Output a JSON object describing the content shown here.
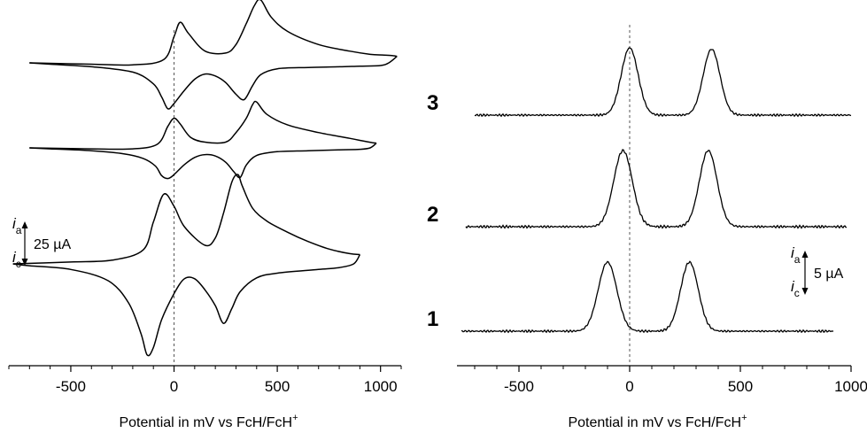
{
  "chart_data": [
    {
      "type": "line",
      "panel": "cyclic-voltammogram",
      "title": "",
      "xlabel": "Potential in mV vs FcH/FcH",
      "xlabel_superscript": "+",
      "ylabel": "",
      "xlim": [
        -800,
        1100
      ],
      "xticks": [
        -500,
        0,
        500,
        1000
      ],
      "xtick_labels": [
        "-500",
        "0",
        "500",
        "1000"
      ],
      "reference_line_x": 0,
      "scale_bar": {
        "top": "i",
        "top_sub": "a",
        "bottom": "i",
        "bottom_sub": "c",
        "label": "25 µA"
      },
      "series": [
        {
          "name": "3",
          "forward": {
            "x": [
              -700,
              -400,
              -200,
              -50,
              0,
              30,
              70,
              150,
              250,
              300,
              350,
              390,
              420,
              470,
              550,
              700,
              850,
              950,
              1010,
              1060,
              1080
            ],
            "y": [
              0.0,
              -0.02,
              -0.03,
              0.05,
              0.4,
              0.62,
              0.45,
              0.18,
              0.15,
              0.28,
              0.6,
              0.88,
              0.96,
              0.7,
              0.48,
              0.28,
              0.18,
              0.13,
              0.12,
              0.11,
              0.1
            ]
          },
          "reverse": {
            "x": [
              1080,
              1040,
              1000,
              900,
              800,
              650,
              500,
              420,
              380,
              340,
              300,
              250,
              200,
              150,
              100,
              50,
              0,
              -30,
              -60,
              -100,
              -200,
              -400,
              -600,
              -700
            ],
            "y": [
              0.1,
              0.0,
              -0.04,
              -0.05,
              -0.06,
              -0.07,
              -0.09,
              -0.18,
              -0.35,
              -0.56,
              -0.48,
              -0.3,
              -0.2,
              -0.17,
              -0.25,
              -0.42,
              -0.62,
              -0.7,
              -0.52,
              -0.32,
              -0.14,
              -0.06,
              -0.02,
              0.0
            ]
          }
        },
        {
          "name": "2",
          "forward": {
            "x": [
              -700,
              -400,
              -200,
              -80,
              -30,
              0,
              30,
              80,
              150,
              250,
              300,
              350,
              380,
              400,
              450,
              550,
              700,
              850,
              920,
              960,
              980
            ],
            "y": [
              0.0,
              -0.02,
              -0.02,
              0.08,
              0.45,
              0.62,
              0.5,
              0.22,
              0.12,
              0.12,
              0.32,
              0.62,
              0.9,
              0.96,
              0.7,
              0.48,
              0.32,
              0.2,
              0.14,
              0.11,
              0.1
            ]
          },
          "reverse": {
            "x": [
              980,
              950,
              900,
              800,
              650,
              500,
              400,
              350,
              320,
              290,
              250,
              200,
              150,
              100,
              50,
              0,
              -30,
              -60,
              -90,
              -150,
              -250,
              -400,
              -600,
              -700
            ],
            "y": [
              0.1,
              0.0,
              -0.03,
              -0.04,
              -0.06,
              -0.08,
              -0.16,
              -0.36,
              -0.62,
              -0.5,
              -0.3,
              -0.17,
              -0.14,
              -0.2,
              -0.35,
              -0.56,
              -0.64,
              -0.58,
              -0.38,
              -0.22,
              -0.12,
              -0.06,
              -0.02,
              0.0
            ]
          }
        },
        {
          "name": "1",
          "forward": {
            "x": [
              -780,
              -500,
              -300,
              -150,
              -100,
              -50,
              0,
              50,
              150,
              200,
              240,
              280,
              310,
              330,
              380,
              450,
              550,
              650,
              750,
              850,
              900
            ],
            "y": [
              0.0,
              0.02,
              0.04,
              0.15,
              0.45,
              0.75,
              0.62,
              0.4,
              0.2,
              0.28,
              0.55,
              0.88,
              0.96,
              0.84,
              0.6,
              0.46,
              0.34,
              0.24,
              0.16,
              0.11,
              0.1
            ]
          },
          "reverse": {
            "x": [
              900,
              870,
              800,
              700,
              500,
              400,
              320,
              280,
              240,
              200,
              150,
              100,
              50,
              0,
              -60,
              -100,
              -130,
              -160,
              -220,
              -320,
              -500,
              -700,
              -780
            ],
            "y": [
              0.1,
              0.0,
              -0.04,
              -0.06,
              -0.1,
              -0.15,
              -0.3,
              -0.48,
              -0.64,
              -0.45,
              -0.28,
              -0.16,
              -0.16,
              -0.32,
              -0.6,
              -0.9,
              -0.98,
              -0.75,
              -0.42,
              -0.18,
              -0.06,
              -0.02,
              0.0
            ]
          }
        }
      ]
    },
    {
      "type": "line",
      "panel": "differential-pulse-voltammogram",
      "title": "",
      "xlabel": "Potential in mV vs FcH/FcH",
      "xlabel_superscript": "+",
      "ylabel": "",
      "xlim": [
        -780,
        1000
      ],
      "xticks": [
        -500,
        0,
        500,
        1000
      ],
      "xtick_labels": [
        "-500",
        "0",
        "500",
        "1000"
      ],
      "reference_line_x": 0,
      "scale_bar": {
        "top": "i",
        "top_sub": "a",
        "bottom": "i",
        "bottom_sub": "c",
        "label": "5 µA"
      },
      "series": [
        {
          "name": "3",
          "x_start": -700,
          "x_end": 1000,
          "peaks": [
            {
              "x": 0,
              "height": 1.0,
              "width": 38
            },
            {
              "x": 370,
              "height": 0.98,
              "width": 38
            }
          ]
        },
        {
          "name": "2",
          "x_start": -740,
          "x_end": 980,
          "peaks": [
            {
              "x": -30,
              "height": 1.0,
              "width": 42
            },
            {
              "x": 355,
              "height": 1.0,
              "width": 40
            }
          ]
        },
        {
          "name": "1",
          "x_start": -760,
          "x_end": 920,
          "peaks": [
            {
              "x": -100,
              "height": 1.0,
              "width": 42
            },
            {
              "x": 270,
              "height": 1.0,
              "width": 40
            }
          ]
        }
      ]
    }
  ]
}
